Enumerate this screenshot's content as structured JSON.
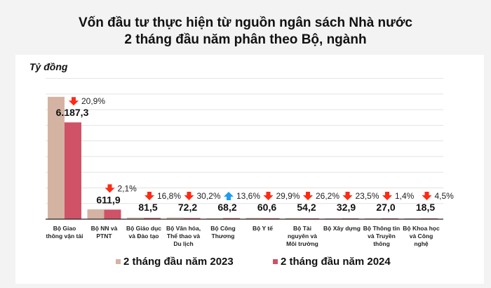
{
  "title_line1": "Vốn đầu tư thực hiện từ nguồn ngân sách Nhà nước",
  "title_line2": "2 tháng đầu năm phân theo Bộ, ngành",
  "chart_data": {
    "type": "bar",
    "title": "Vốn đầu tư thực hiện từ nguồn ngân sách Nhà nước 2 tháng đầu năm phân theo Bộ, ngành",
    "ylabel": "Tỷ đồng",
    "ylim": [
      0,
      9000
    ],
    "grid": true,
    "legend_position": "bottom",
    "categories": [
      "Bộ Giao thông vận tải",
      "Bộ NN và PTNT",
      "Bộ Giáo dục và Đào tạo",
      "Bộ Văn hóa, Thể thao và Du lịch",
      "Bộ Công Thương",
      "Bộ Y tế",
      "Bộ Tài nguyên và Môi trường",
      "Bộ Xây dựng",
      "Bộ Thông tin và Truyền thông",
      "Bộ Khoa học và Công nghệ"
    ],
    "series": [
      {
        "name": "2 tháng đầu năm 2023",
        "color": "#d4b3a3",
        "values": [
          7822,
          625,
          98,
          103,
          60,
          86,
          73,
          43,
          27,
          19
        ]
      },
      {
        "name": "2 tháng đầu năm 2024",
        "color": "#cf5266",
        "values": [
          6187.3,
          611.9,
          81.5,
          72.2,
          68.2,
          60.6,
          54.2,
          32.9,
          27.0,
          18.5
        ]
      }
    ],
    "data_labels": [
      "6.187,3",
      "611,9",
      "81,5",
      "72,2",
      "68,2",
      "60,6",
      "54,2",
      "32,9",
      "27,0",
      "18,5"
    ],
    "changes": [
      {
        "direction": "down",
        "text": "20,9%"
      },
      {
        "direction": "down",
        "text": "2,1%"
      },
      {
        "direction": "down",
        "text": "16,8%"
      },
      {
        "direction": "down",
        "text": "30,2%"
      },
      {
        "direction": "up",
        "text": "13,6%"
      },
      {
        "direction": "down",
        "text": "29,9%"
      },
      {
        "direction": "down",
        "text": "26,2%"
      },
      {
        "direction": "down",
        "text": "23,5%"
      },
      {
        "direction": "down",
        "text": "1,4%"
      },
      {
        "direction": "down",
        "text": "4,5%"
      }
    ],
    "category_label_lines": [
      [
        "Bộ Giao",
        "thông vận tải"
      ],
      [
        "Bộ NN và",
        "PTNT"
      ],
      [
        "Bộ Giáo dục",
        "và Đào tạo"
      ],
      [
        "Bộ Văn hóa,",
        "Thể thao và",
        "Du lịch"
      ],
      [
        "Bộ Công",
        "Thương"
      ],
      [
        "Bộ Y tế"
      ],
      [
        "Bộ Tài",
        "nguyên và",
        "Môi trường"
      ],
      [
        "Bộ Xây dựng"
      ],
      [
        "Bộ Thông tin",
        "và Truyền",
        "thông"
      ],
      [
        "Bộ Khoa học",
        "và Công",
        "nghệ"
      ]
    ],
    "arrow_colors": {
      "down": "#ff2a14",
      "up": "#1e9cf0"
    }
  }
}
